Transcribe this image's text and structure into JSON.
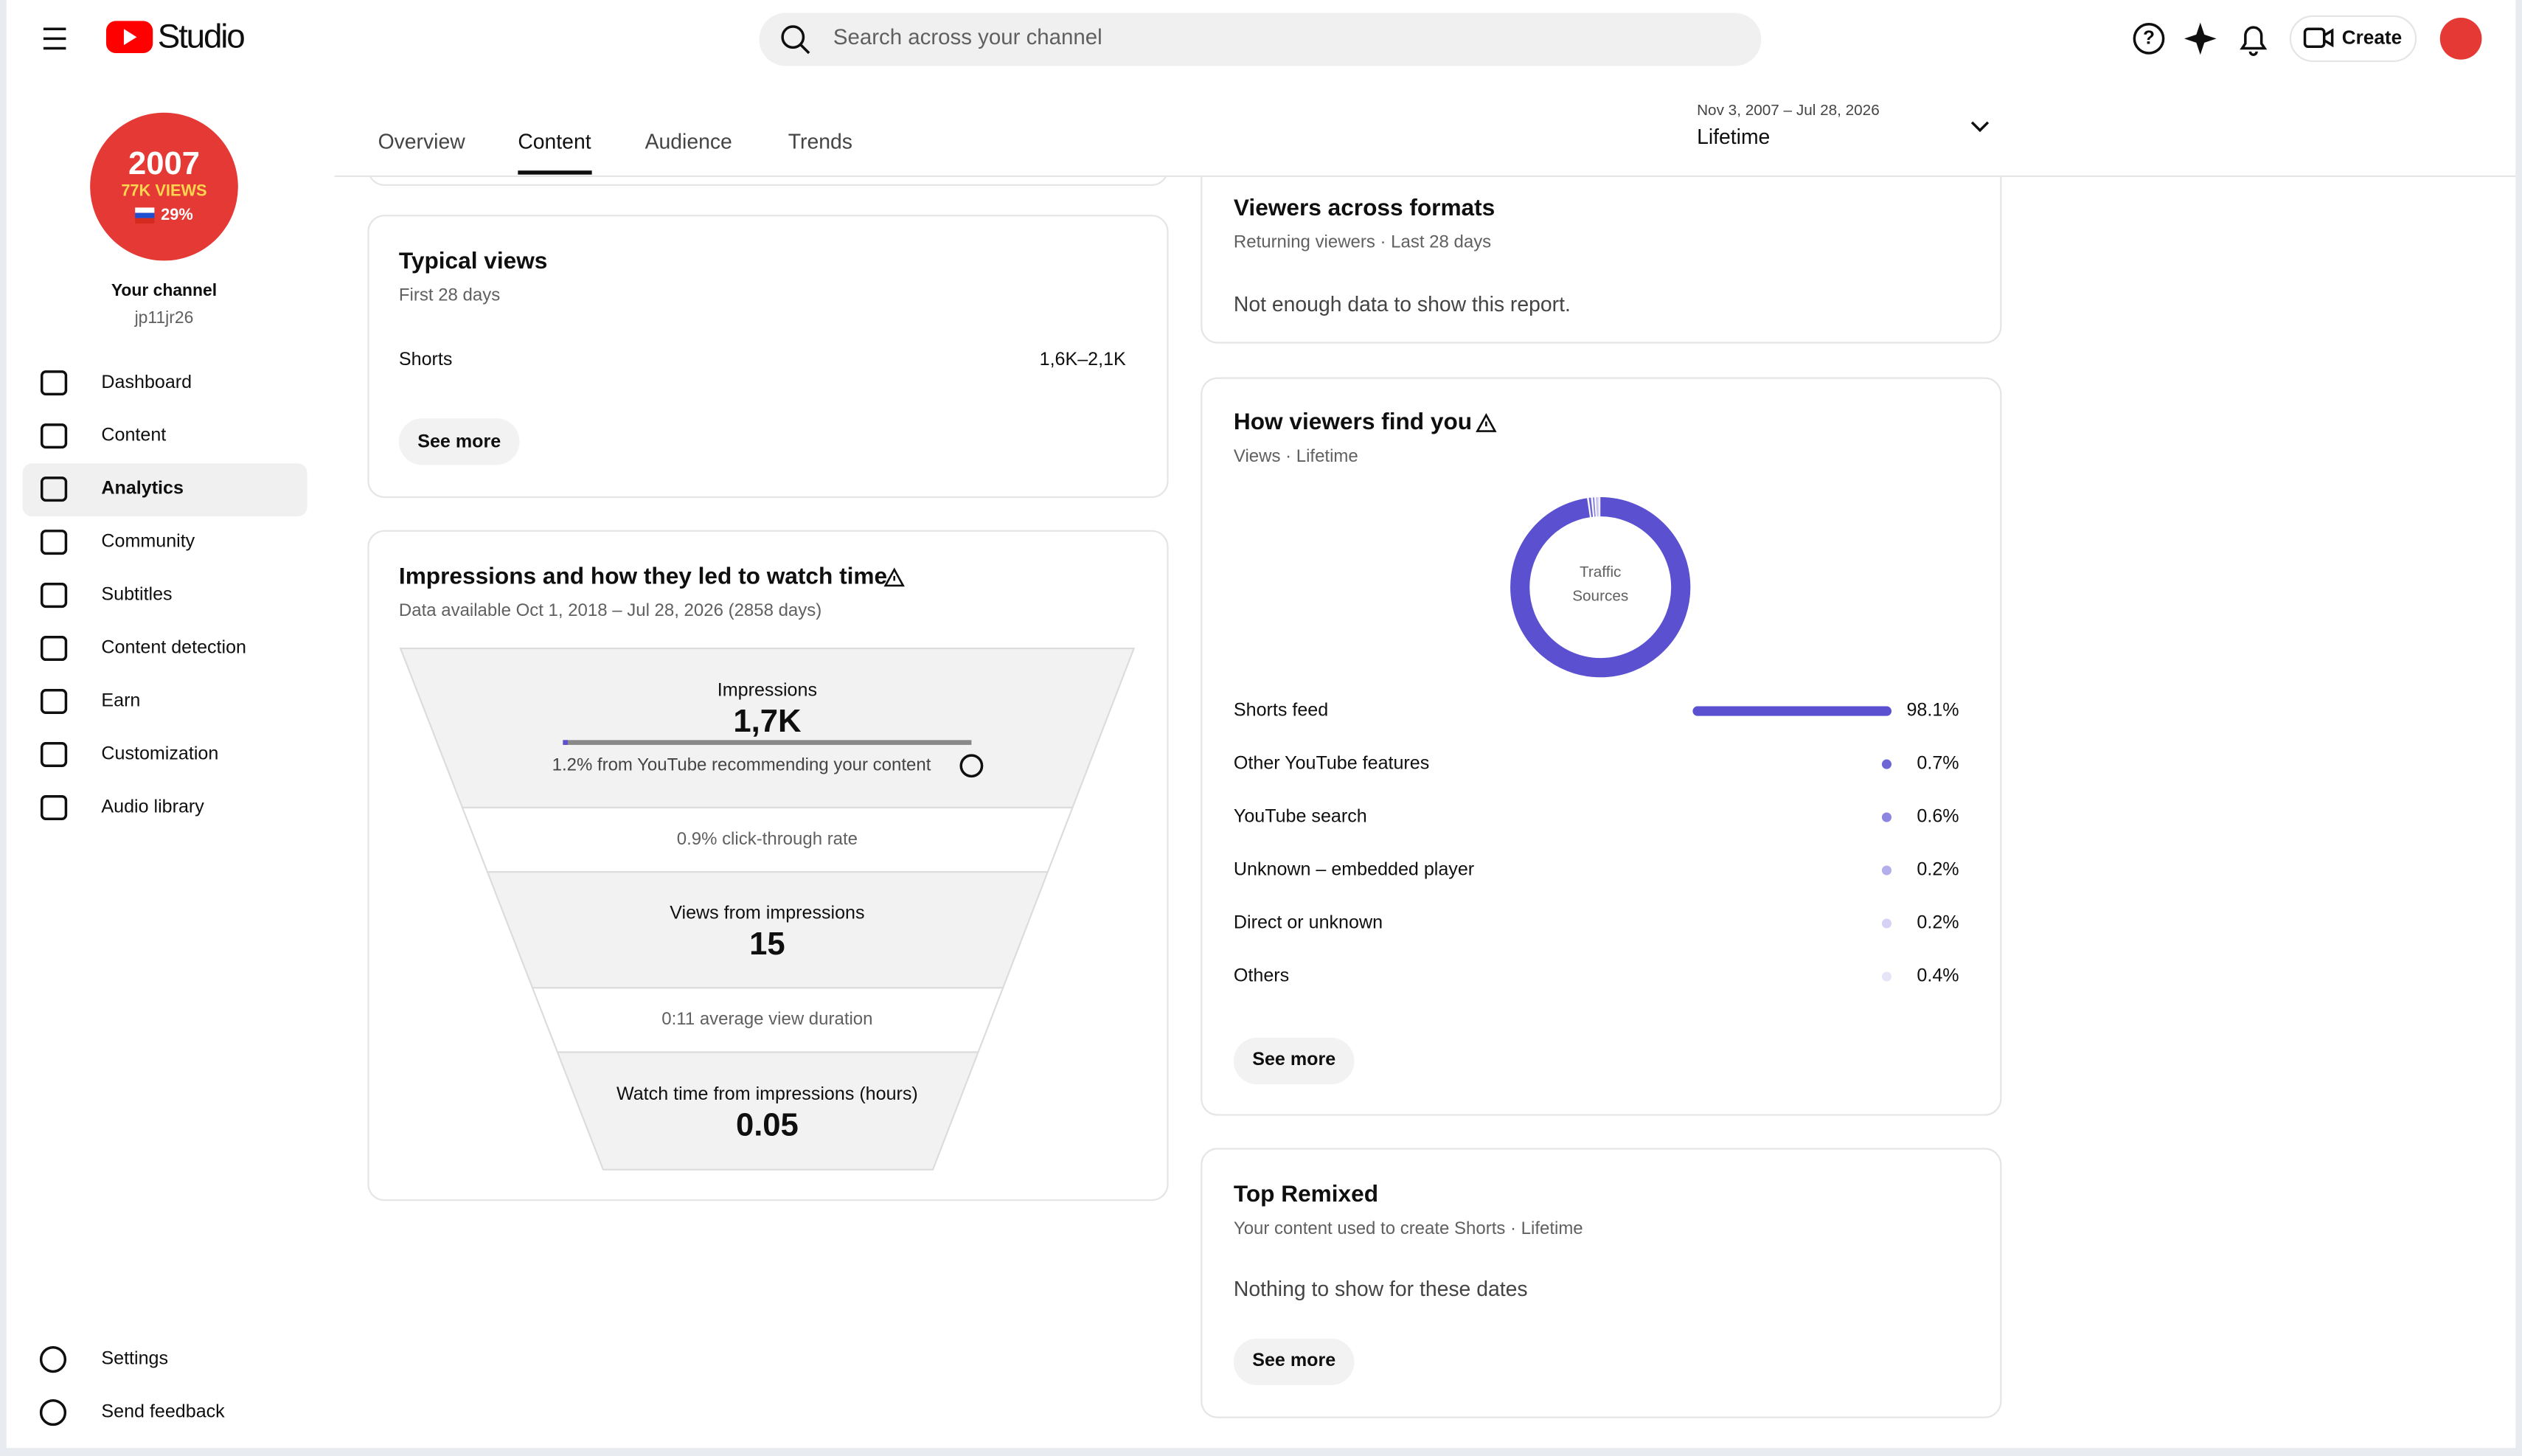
{
  "header": {
    "app": "Studio",
    "search_placeholder": "Search across your channel",
    "create": "Create"
  },
  "sidebar": {
    "avatar_text": [
      "2007",
      "77K VIEWS",
      "29%"
    ],
    "channel_label": "Your channel",
    "handle": "jp11jr26",
    "nav": [
      "Dashboard",
      "Content",
      "Analytics",
      "Community",
      "Subtitles",
      "Content detection",
      "Earn",
      "Customization",
      "Audio library"
    ],
    "footer_nav": [
      "Settings",
      "Send feedback"
    ]
  },
  "tabs": [
    "Overview",
    "Content",
    "Audience",
    "Trends"
  ],
  "date_range": {
    "range": "Nov 3, 2007 – Jul 28, 2026",
    "label": "Lifetime"
  },
  "typical_views": {
    "title": "Typical views",
    "subtitle": "First 28 days",
    "rows": [
      [
        "Shorts",
        "1,6K–2,1K"
      ]
    ],
    "button": "See more"
  },
  "impressions": {
    "title": "Impressions and how they led to watch time",
    "subtitle": "Data available Oct 1, 2018 – Jul 28, 2026 (2858 days)",
    "funnel": [
      {
        "label": "Impressions",
        "value": "1,7K",
        "note": "1.2% from YouTube recommending your content"
      },
      {
        "label": "0.9% click-through rate"
      },
      {
        "label": "Views from impressions",
        "value": "15"
      },
      {
        "label": "0:11 average view duration"
      },
      {
        "label": "Watch time from impressions (hours)",
        "value": "0.05"
      }
    ]
  },
  "viewers_across_formats": {
    "title": "Viewers across formats",
    "subtitle": "Returning viewers · Last 28 days",
    "message": "Not enough data to show this report."
  },
  "how_viewers_find_you": {
    "title": "How viewers find you",
    "subtitle": "Views · Lifetime",
    "button": "See more",
    "chart_data": {
      "type": "donut",
      "center_label": [
        "Traffic",
        "Sources"
      ],
      "categories": [
        "Shorts feed",
        "Other YouTube features",
        "YouTube search",
        "Unknown – embedded player",
        "Direct or unknown",
        "Others"
      ],
      "values": [
        98.1,
        0.7,
        0.6,
        0.2,
        0.2,
        0.4
      ],
      "value_labels": [
        "98.1%",
        "0.7%",
        "0.6%",
        "0.2%",
        "0.2%",
        "0.4%"
      ],
      "colors": [
        "#5b50d0",
        "#6f66d6",
        "#8d86e0",
        "#b3aeec",
        "#d5d2f5",
        "#e6e4f8"
      ]
    }
  },
  "top_remixed": {
    "title": "Top Remixed",
    "subtitle": "Your content used to create Shorts · Lifetime",
    "message": "Nothing to show for these dates",
    "button": "See more"
  }
}
